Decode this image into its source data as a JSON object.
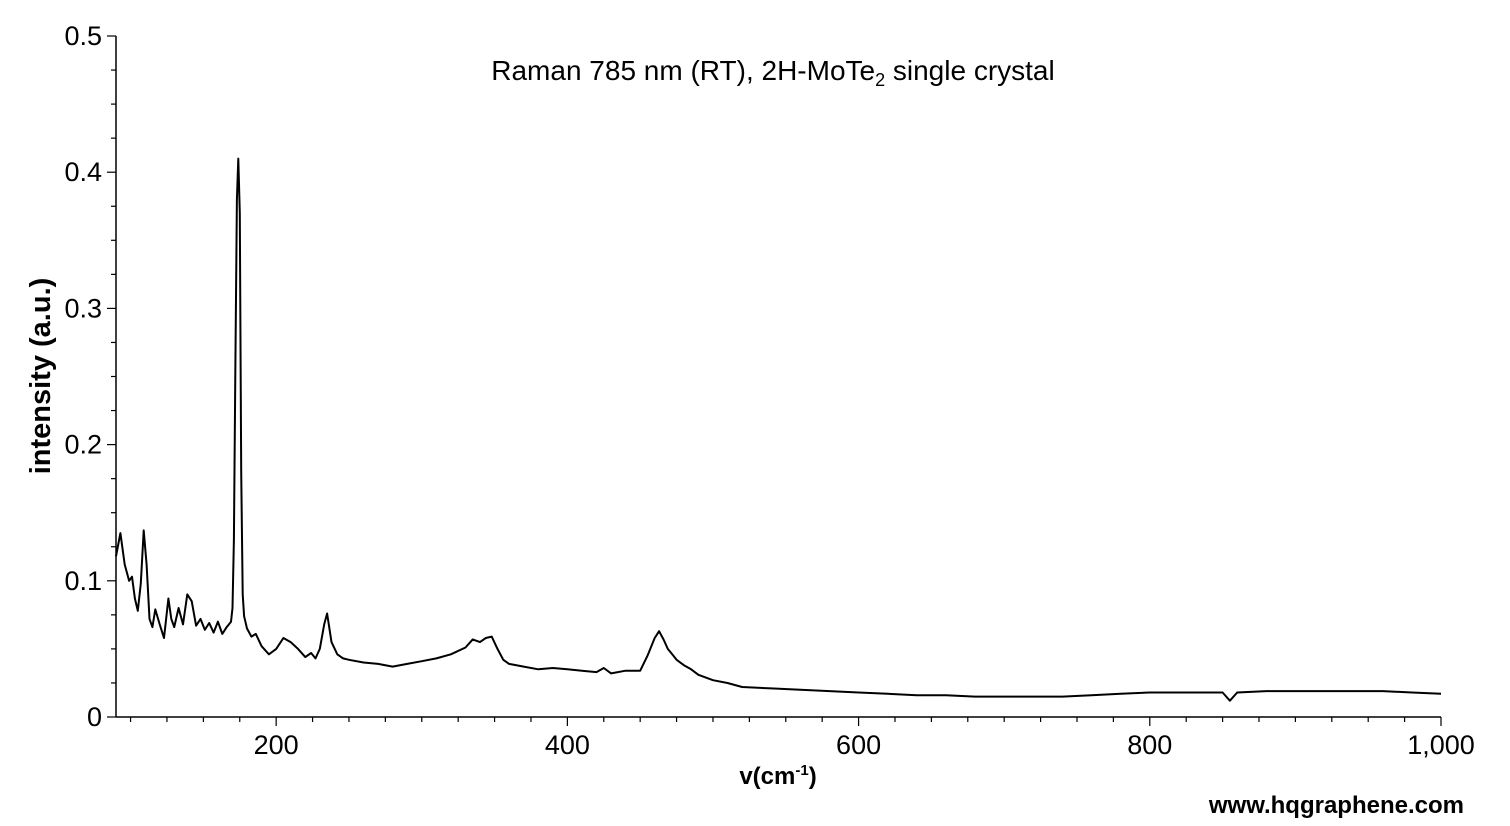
{
  "chart_data": {
    "type": "line",
    "title": {
      "prefix": "Raman 785 nm (RT), 2H-MoTe",
      "sub": "2",
      "suffix": " single crystal"
    },
    "xlabel": {
      "main": "v(cm",
      "sup": "-1",
      "end": ")"
    },
    "ylabel": "intensity (a.u.)",
    "xlim": [
      90,
      1000
    ],
    "ylim": [
      0,
      0.5
    ],
    "x_ticks": [
      200,
      400,
      600,
      800,
      1000
    ],
    "x_tick_labels": [
      "200",
      "400",
      "600",
      "800",
      "1,000"
    ],
    "y_ticks": [
      0,
      0.1,
      0.2,
      0.3,
      0.4,
      0.5
    ],
    "y_tick_labels": [
      "0",
      "0.1",
      "0.2",
      "0.3",
      "0.4",
      "0.5"
    ],
    "grid": false,
    "line_color": "#000000",
    "series": [
      {
        "x": [
          90,
          93,
          96,
          99,
          101,
          103,
          105,
          107,
          109,
          111,
          113,
          115,
          117,
          120,
          123,
          126,
          128,
          130,
          133,
          136,
          139,
          142,
          145,
          148,
          151,
          154,
          157,
          160,
          163,
          166,
          169,
          170,
          171,
          172,
          173,
          174,
          175,
          176,
          177,
          178,
          180,
          183,
          186,
          190,
          195,
          200,
          205,
          210,
          215,
          220,
          224,
          227,
          230,
          233,
          235,
          238,
          242,
          246,
          250,
          260,
          270,
          280,
          290,
          300,
          310,
          320,
          330,
          335,
          340,
          344,
          348,
          352,
          356,
          360,
          370,
          380,
          390,
          400,
          410,
          420,
          425,
          430,
          440,
          450,
          455,
          460,
          463,
          466,
          469,
          472,
          475,
          480,
          485,
          490,
          500,
          510,
          520,
          540,
          560,
          580,
          600,
          620,
          640,
          660,
          680,
          700,
          720,
          740,
          760,
          780,
          800,
          820,
          840,
          850,
          855,
          860,
          880,
          900,
          920,
          940,
          960,
          980,
          1000
        ],
        "values": [
          0.118,
          0.135,
          0.112,
          0.1,
          0.103,
          0.087,
          0.078,
          0.098,
          0.137,
          0.112,
          0.072,
          0.066,
          0.079,
          0.068,
          0.058,
          0.087,
          0.072,
          0.066,
          0.08,
          0.068,
          0.09,
          0.085,
          0.067,
          0.072,
          0.064,
          0.069,
          0.062,
          0.07,
          0.061,
          0.066,
          0.07,
          0.08,
          0.13,
          0.26,
          0.38,
          0.41,
          0.37,
          0.18,
          0.09,
          0.074,
          0.065,
          0.059,
          0.061,
          0.052,
          0.046,
          0.05,
          0.058,
          0.055,
          0.05,
          0.044,
          0.047,
          0.043,
          0.05,
          0.068,
          0.076,
          0.055,
          0.046,
          0.043,
          0.042,
          0.04,
          0.039,
          0.037,
          0.039,
          0.041,
          0.043,
          0.046,
          0.051,
          0.057,
          0.055,
          0.058,
          0.059,
          0.05,
          0.042,
          0.039,
          0.037,
          0.035,
          0.036,
          0.035,
          0.034,
          0.033,
          0.036,
          0.032,
          0.034,
          0.034,
          0.045,
          0.058,
          0.063,
          0.057,
          0.05,
          0.046,
          0.042,
          0.038,
          0.035,
          0.031,
          0.027,
          0.025,
          0.022,
          0.021,
          0.02,
          0.019,
          0.018,
          0.017,
          0.016,
          0.016,
          0.015,
          0.015,
          0.015,
          0.015,
          0.016,
          0.017,
          0.018,
          0.018,
          0.018,
          0.018,
          0.012,
          0.018,
          0.019,
          0.019,
          0.019,
          0.019,
          0.019,
          0.018,
          0.017
        ]
      }
    ]
  },
  "watermark": "www.hqgraphene.com"
}
